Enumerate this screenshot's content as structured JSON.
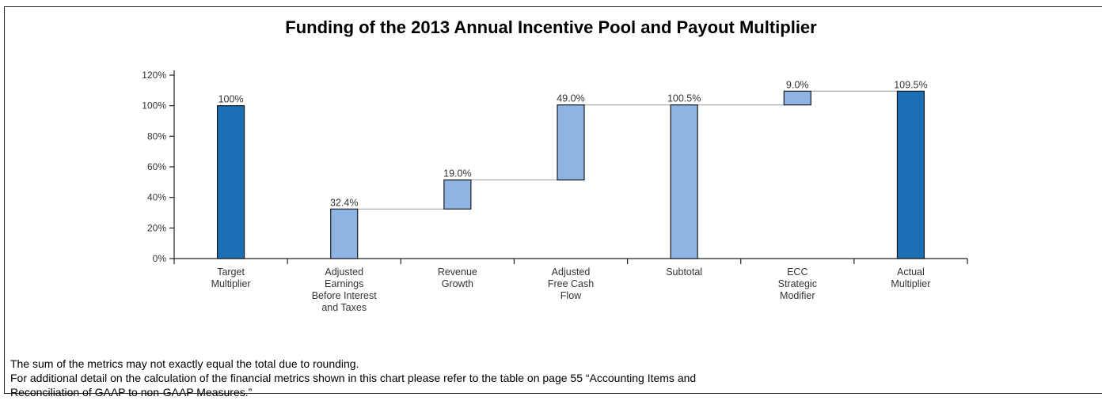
{
  "chart_data": {
    "type": "bar",
    "subtype": "waterfall",
    "title": "Funding of the 2013 Annual Incentive Pool and Payout Multiplier",
    "xlabel": "",
    "ylabel": "",
    "ylim": [
      0,
      120
    ],
    "y_ticks": [
      "0%",
      "20%",
      "40%",
      "60%",
      "80%",
      "100%",
      "120%"
    ],
    "grid": false,
    "colors": {
      "total": "#1a6fb5",
      "increment": "#8db4e2",
      "outline": "#1a1a1a",
      "connector": "#999999"
    },
    "bars": [
      {
        "label": [
          "Target",
          "Multiplier"
        ],
        "start": 0,
        "end": 100,
        "value_label": "100%",
        "kind": "total"
      },
      {
        "label": [
          "Adjusted",
          "Earnings",
          "Before Interest",
          "and Taxes"
        ],
        "start": 0,
        "end": 32.4,
        "value_label": "32.4%",
        "kind": "increment"
      },
      {
        "label": [
          "Revenue",
          "Growth"
        ],
        "start": 32.4,
        "end": 51.4,
        "value_label": "19.0%",
        "kind": "increment"
      },
      {
        "label": [
          "Adjusted",
          "Free Cash",
          "Flow"
        ],
        "start": 51.4,
        "end": 100.5,
        "value_label": "49.0%",
        "kind": "increment"
      },
      {
        "label": [
          "Subtotal"
        ],
        "start": 0,
        "end": 100.5,
        "value_label": "100.5%",
        "kind": "subtotal"
      },
      {
        "label": [
          "ECC",
          "Strategic",
          "Modifier"
        ],
        "start": 100.5,
        "end": 109.5,
        "value_label": "9.0%",
        "kind": "increment"
      },
      {
        "label": [
          "Actual",
          "Multiplier"
        ],
        "start": 0,
        "end": 109.5,
        "value_label": "109.5%",
        "kind": "total"
      }
    ]
  },
  "notes": {
    "line1": "The sum of the metrics may not exactly equal the total due to rounding.",
    "line2": "For additional detail on the calculation of the financial metrics shown in this chart please  refer to the table on page 55 “Accounting Items and",
    "line3": "Reconciliation of GAAP to non-GAAP Measures.”"
  }
}
